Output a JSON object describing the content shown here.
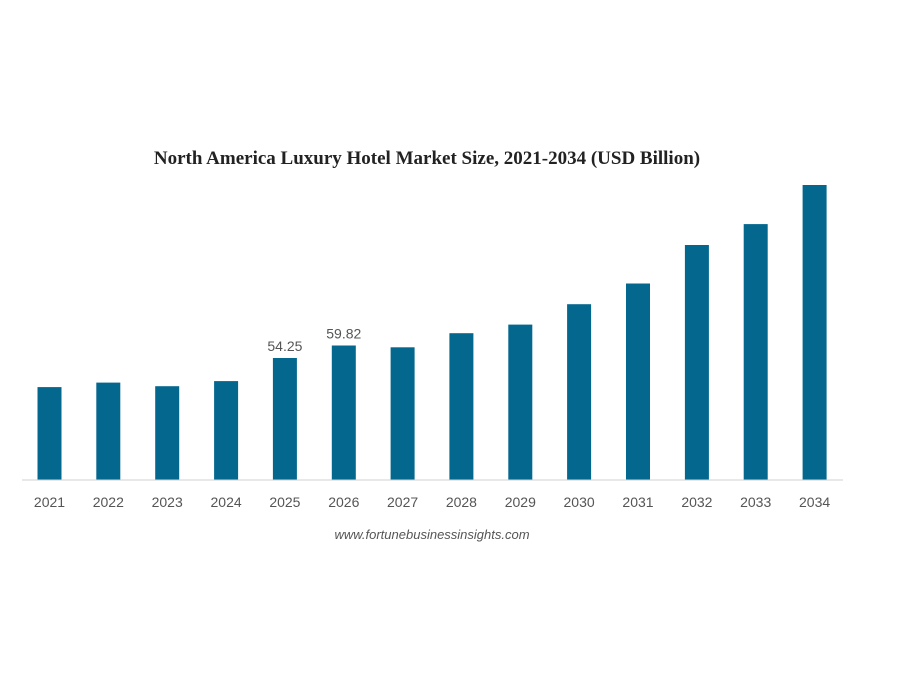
{
  "chart_data": {
    "type": "bar",
    "title": "North America Luxury Hotel Market Size, 2021-2034 (USD Billion)",
    "xlabel": "",
    "ylabel": "",
    "categories": [
      "2021",
      "2022",
      "2023",
      "2024",
      "2025",
      "2026",
      "2027",
      "2028",
      "2029",
      "2030",
      "2031",
      "2032",
      "2033",
      "2034"
    ],
    "values": [
      41.3,
      43.3,
      41.7,
      44.0,
      54.25,
      59.82,
      59.0,
      65.3,
      69.1,
      78.2,
      87.4,
      104.5,
      113.8,
      131.2
    ],
    "data_labels": [
      "",
      "",
      "",
      "",
      "54.25",
      "59.82",
      "",
      "",
      "",
      "",
      "",
      "",
      "",
      ""
    ],
    "ylim": [
      0,
      131.2
    ],
    "grid": false,
    "legend": "none",
    "colors": {
      "bar": "#04678e",
      "axis_line": "#d0d0d0",
      "text": "#555555",
      "title": "#222222"
    }
  },
  "source_note": "www.fortunebusinessinsights.com"
}
